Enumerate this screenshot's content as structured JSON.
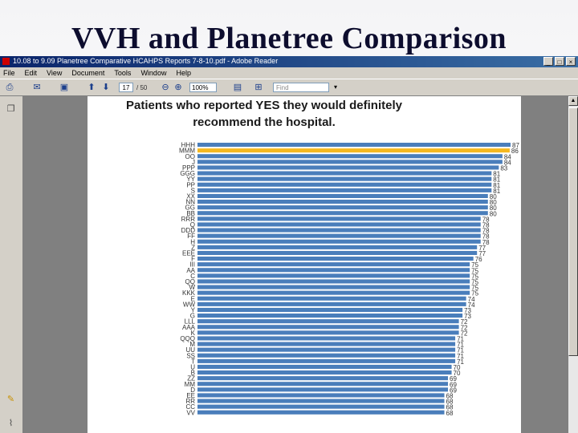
{
  "slide": {
    "title": "VVH and Planetree Comparison"
  },
  "window": {
    "title": "10.08 to 9.09 Planetree Comparative HCAHPS Reports 7-8-10.pdf - Adobe Reader",
    "buttons": {
      "minimize": "_",
      "maximize": "□",
      "close": "×"
    }
  },
  "menu": [
    "File",
    "Edit",
    "View",
    "Document",
    "Tools",
    "Window",
    "Help"
  ],
  "toolbar": {
    "page_number": "17",
    "page_total": "/ 50",
    "zoom": "100%",
    "find_placeholder": "Find"
  },
  "icons": {
    "print": "print-icon",
    "email": "email-icon",
    "prev": "up-arrow-icon",
    "next": "down-arrow-icon",
    "zoom_out": "zoom-out-icon",
    "zoom_in": "zoom-in-icon",
    "save": "save-icon",
    "fit": "fit-page-icon",
    "pages_panel": "pages-icon",
    "comment": "comment-icon",
    "attach": "paperclip-icon"
  },
  "colors": {
    "bar": "#4a7ebb",
    "highlight": "#f5b820",
    "title_bg": "#0a246a"
  },
  "chart_data": {
    "type": "bar",
    "orientation": "horizontal",
    "title": "Patients who reported YES they would definitely recommend the hospital.",
    "title_lines": [
      "Patients who reported YES they would definitely",
      "recommend the hospital."
    ],
    "categories": [
      "HHH",
      "MMM",
      "OO",
      "J",
      "PPP",
      "GGG",
      "YY",
      "PP",
      "S",
      "XX",
      "NN",
      "GG",
      "BB",
      "RRR",
      "Q",
      "DDD",
      "FF",
      "H",
      "Z",
      "EEE",
      "F",
      "III",
      "AA",
      "C",
      "QQ",
      "W",
      "KKK",
      "E",
      "WW",
      "Y",
      "G",
      "LLL",
      "AAA",
      "K",
      "QQQ",
      "M",
      "UU",
      "SS",
      "T",
      "U",
      "B",
      "ZZ",
      "MM",
      "D",
      "EE",
      "RR",
      "CC",
      "VV"
    ],
    "values": [
      87,
      86,
      84,
      84,
      83,
      81,
      81,
      81,
      81,
      80,
      80,
      80,
      80,
      78,
      78,
      78,
      78,
      78,
      77,
      77,
      76,
      75,
      75,
      75,
      75,
      75,
      75,
      74,
      74,
      73,
      73,
      72,
      72,
      72,
      71,
      71,
      71,
      71,
      71,
      70,
      70,
      69,
      69,
      69,
      68,
      68,
      68,
      68
    ],
    "highlight_index": 1,
    "xlim": [
      0,
      90
    ]
  }
}
